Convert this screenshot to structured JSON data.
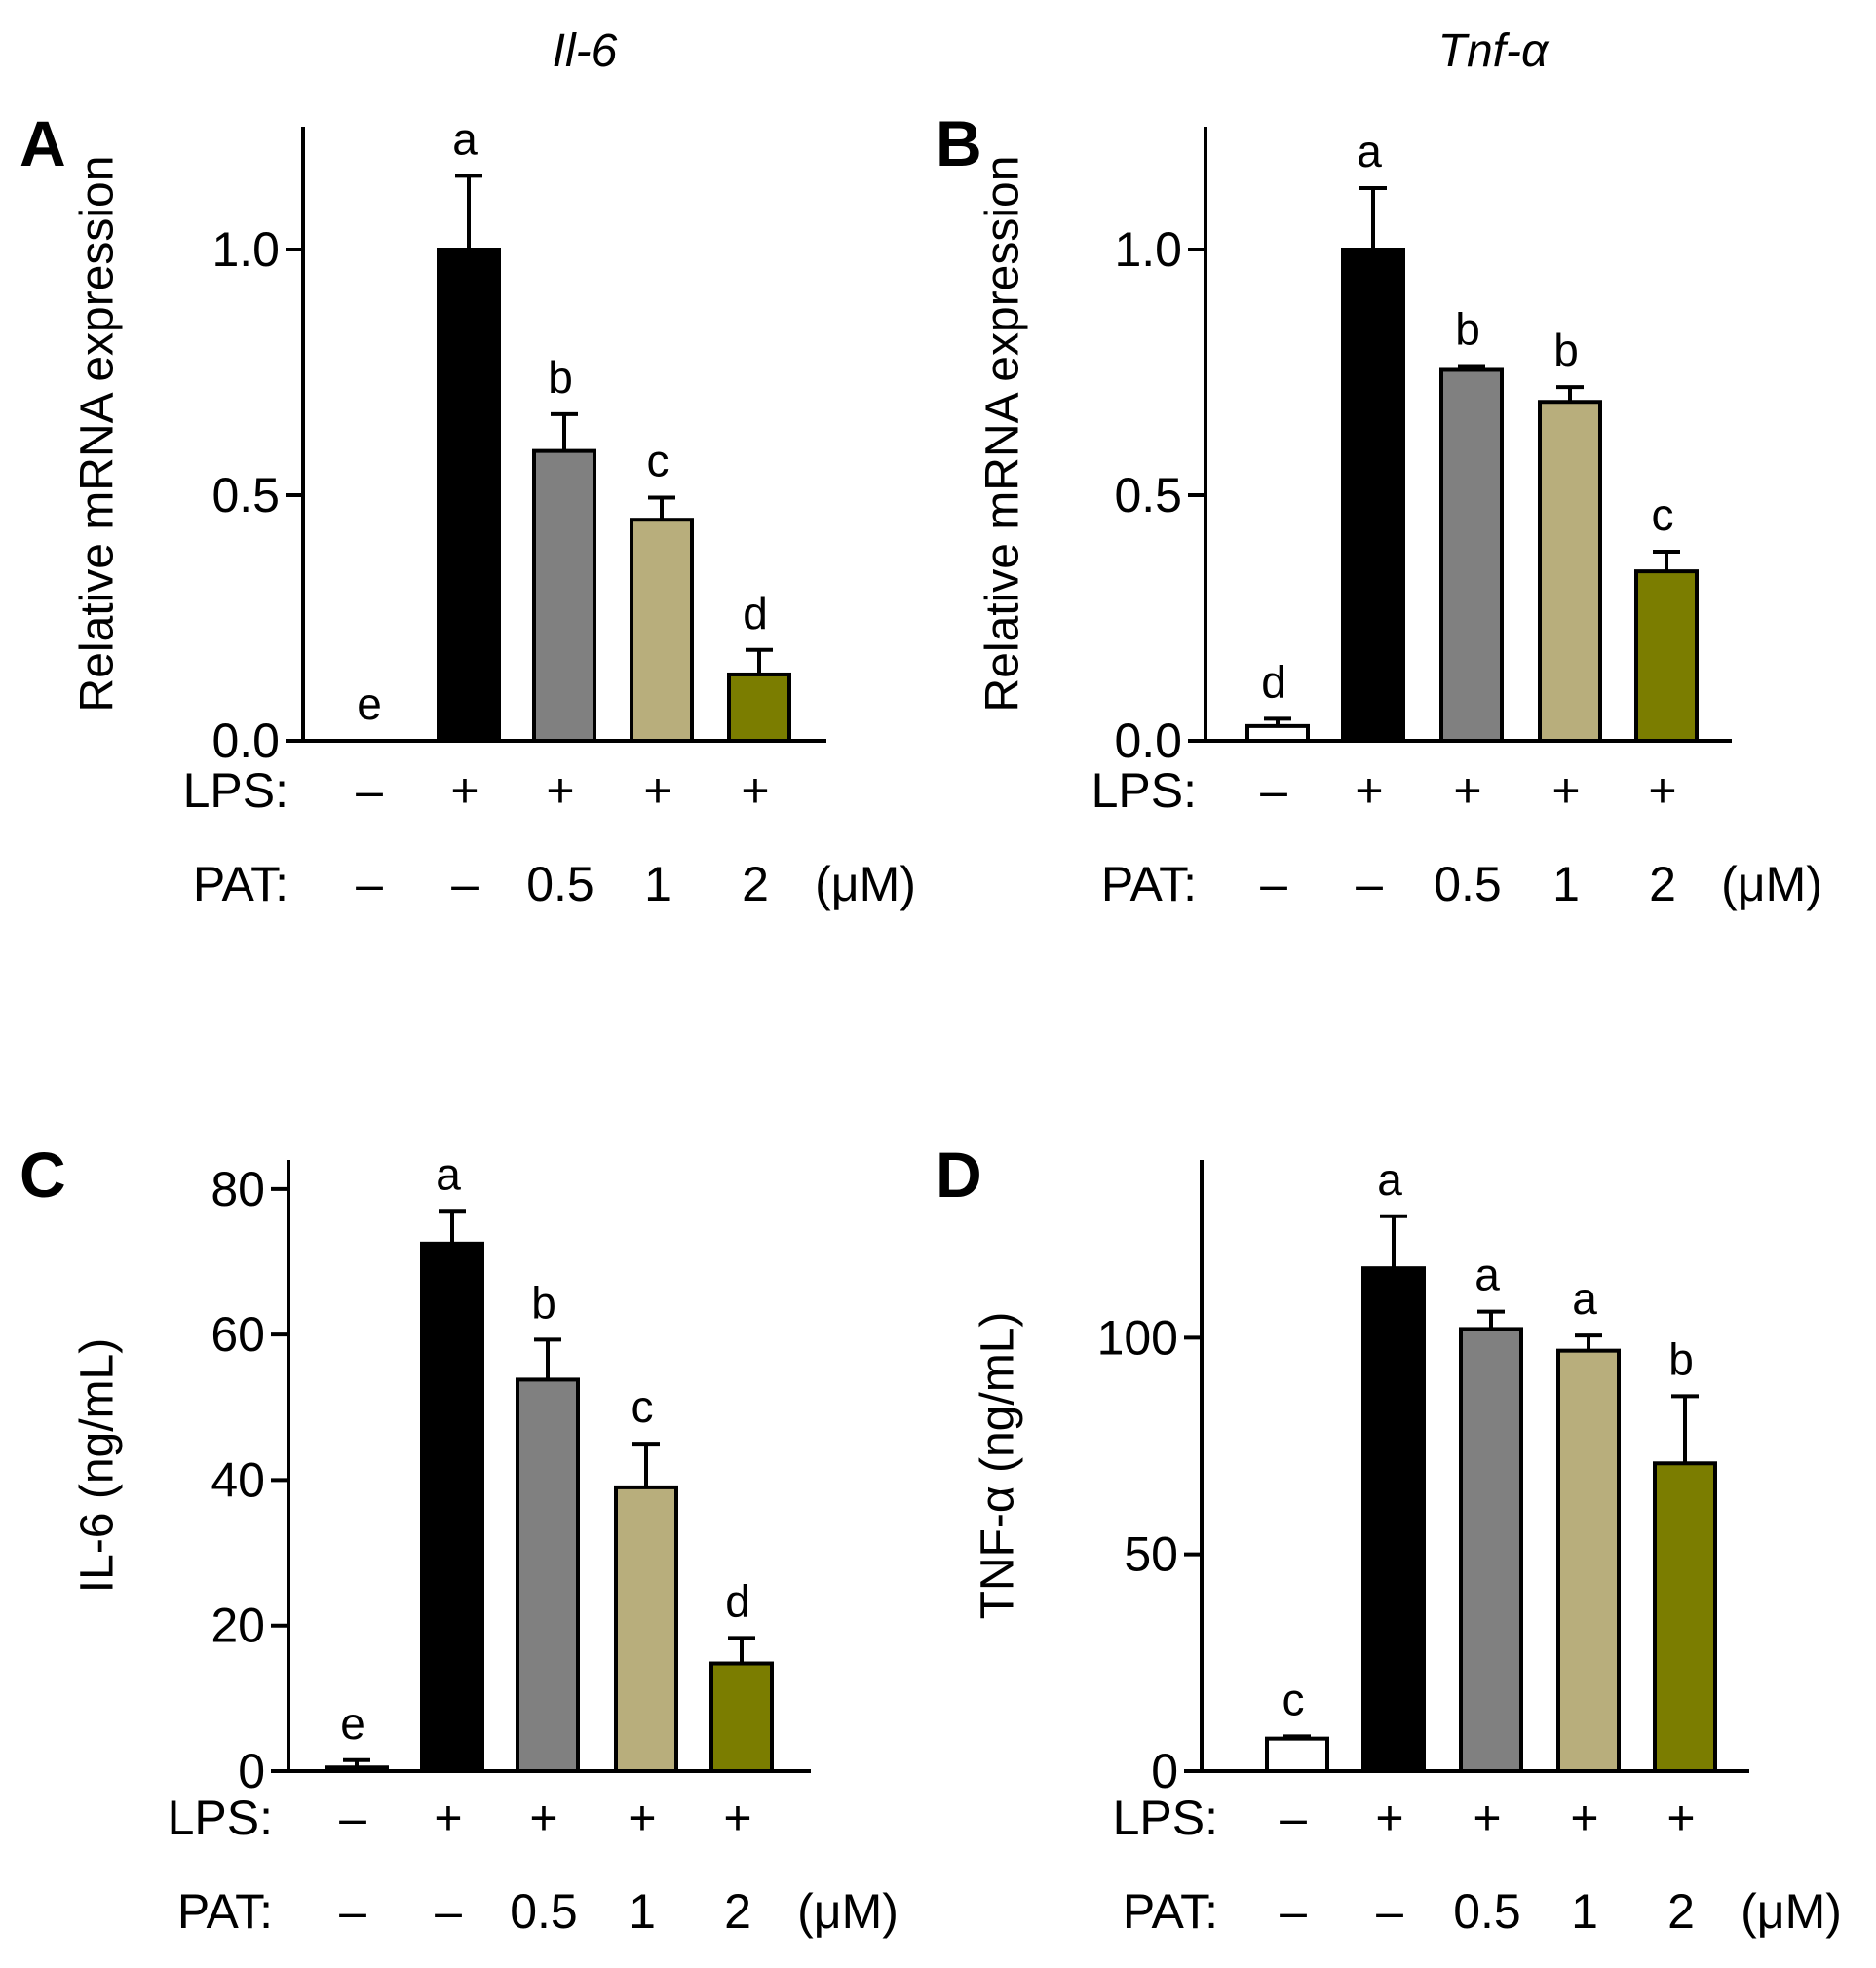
{
  "figure": {
    "panel_letters": [
      "A",
      "B",
      "C",
      "D"
    ]
  },
  "chart_data": [
    {
      "panel": "A",
      "type": "bar",
      "title": "Il-6",
      "ylabel": "Relative mRNA expression",
      "ylim": [
        0,
        1.25
      ],
      "yticks": [
        0.0,
        0.5,
        1.0
      ],
      "ytick_labels": [
        "0.0",
        "0.5",
        "1.0"
      ],
      "categories": [
        "LPS −, PAT −",
        "LPS +, PAT −",
        "LPS +, PAT 0.5",
        "LPS +, PAT 1",
        "LPS +, PAT 2"
      ],
      "values": [
        0.0,
        1.0,
        0.59,
        0.45,
        0.135
      ],
      "errors": [
        0.0,
        0.15,
        0.075,
        0.045,
        0.05
      ],
      "significance": [
        "e",
        "a",
        "b",
        "c",
        "d"
      ],
      "fill_colors": [
        "#ffffff",
        "#000000",
        "#808080",
        "#b8ae7c",
        "#7b7d00"
      ],
      "treatments": [
        {
          "label": "LPS:",
          "values": [
            "–",
            "+",
            "+",
            "+",
            "+"
          ],
          "unit": ""
        },
        {
          "label": "PAT:",
          "values": [
            "–",
            "–",
            "0.5",
            "1",
            "2"
          ],
          "unit": "(μM)"
        }
      ]
    },
    {
      "panel": "B",
      "type": "bar",
      "title": "Tnf-α",
      "ylabel": "Relative mRNA expression",
      "ylim": [
        0,
        1.25
      ],
      "yticks": [
        0.0,
        0.5,
        1.0
      ],
      "ytick_labels": [
        "0.0",
        "0.5",
        "1.0"
      ],
      "categories": [
        "LPS −, PAT −",
        "LPS +, PAT −",
        "LPS +, PAT 0.5",
        "LPS +, PAT 1",
        "LPS +, PAT 2"
      ],
      "values": [
        0.03,
        1.0,
        0.755,
        0.69,
        0.345
      ],
      "errors": [
        0.015,
        0.125,
        0.008,
        0.03,
        0.04
      ],
      "significance": [
        "d",
        "a",
        "b",
        "b",
        "c"
      ],
      "fill_colors": [
        "#ffffff",
        "#000000",
        "#808080",
        "#b8ae7c",
        "#7b7d00"
      ],
      "treatments": [
        {
          "label": "LPS:",
          "values": [
            "–",
            "+",
            "+",
            "+",
            "+"
          ],
          "unit": ""
        },
        {
          "label": "PAT:",
          "values": [
            "–",
            "–",
            "0.5",
            "1",
            "2"
          ],
          "unit": "(μM)"
        }
      ]
    },
    {
      "panel": "C",
      "type": "bar",
      "title": "",
      "ylabel": "IL-6 (ng/mL)",
      "ylim": [
        0,
        84
      ],
      "yticks": [
        0,
        20,
        40,
        60,
        80
      ],
      "ytick_labels": [
        "0",
        "20",
        "40",
        "60",
        "80"
      ],
      "categories": [
        "LPS −, PAT −",
        "LPS +, PAT −",
        "LPS +, PAT 0.5",
        "LPS +, PAT 1",
        "LPS +, PAT 2"
      ],
      "values": [
        0.5,
        72.5,
        53.8,
        39.0,
        14.8
      ],
      "errors": [
        1.0,
        4.5,
        5.5,
        6.0,
        3.5
      ],
      "significance": [
        "e",
        "a",
        "b",
        "c",
        "d"
      ],
      "fill_colors": [
        "#ffffff",
        "#000000",
        "#808080",
        "#b8ae7c",
        "#7b7d00"
      ],
      "treatments": [
        {
          "label": "LPS:",
          "values": [
            "–",
            "+",
            "+",
            "+",
            "+"
          ],
          "unit": ""
        },
        {
          "label": "PAT:",
          "values": [
            "–",
            "–",
            "0.5",
            "1",
            "2"
          ],
          "unit": "(μM)"
        }
      ]
    },
    {
      "panel": "D",
      "type": "bar",
      "title": "",
      "ylabel": "TNF-α (ng/mL)",
      "ylim": [
        0,
        141
      ],
      "yticks": [
        0,
        50,
        100
      ],
      "ytick_labels": [
        "0",
        "50",
        "100"
      ],
      "categories": [
        "LPS −, PAT −",
        "LPS +, PAT −",
        "LPS +, PAT 0.5",
        "LPS +, PAT 1",
        "LPS +, PAT 2"
      ],
      "values": [
        7.5,
        116.0,
        102.0,
        97.0,
        71.0
      ],
      "errors": [
        0.5,
        12.0,
        4.0,
        3.5,
        15.5
      ],
      "significance": [
        "c",
        "a",
        "a",
        "a",
        "b"
      ],
      "fill_colors": [
        "#ffffff",
        "#000000",
        "#808080",
        "#b8ae7c",
        "#7b7d00"
      ],
      "treatments": [
        {
          "label": "LPS:",
          "values": [
            "–",
            "+",
            "+",
            "+",
            "+"
          ],
          "unit": ""
        },
        {
          "label": "PAT:",
          "values": [
            "–",
            "–",
            "0.5",
            "1",
            "2"
          ],
          "unit": "(μM)"
        }
      ]
    }
  ]
}
